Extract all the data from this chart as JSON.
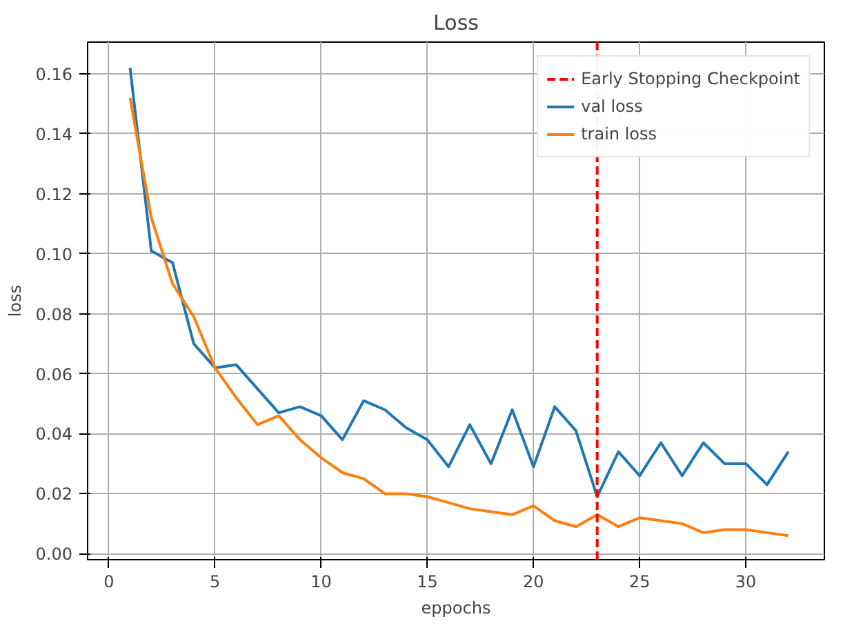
{
  "chart_data": {
    "type": "line",
    "title": "Loss",
    "xlabel": "eppochs",
    "ylabel": "loss",
    "x": [
      1,
      2,
      3,
      4,
      5,
      6,
      7,
      8,
      9,
      10,
      11,
      12,
      13,
      14,
      15,
      16,
      17,
      18,
      19,
      20,
      21,
      22,
      23,
      24,
      25,
      26,
      27,
      28,
      29,
      30,
      31,
      32
    ],
    "series": [
      {
        "name": "val loss",
        "color": "#1f77b4",
        "values": [
          0.162,
          0.101,
          0.097,
          0.07,
          0.062,
          0.063,
          0.055,
          0.047,
          0.049,
          0.046,
          0.038,
          0.051,
          0.048,
          0.042,
          0.038,
          0.029,
          0.043,
          0.03,
          0.048,
          0.029,
          0.049,
          0.041,
          0.019,
          0.034,
          0.026,
          0.037,
          0.026,
          0.037,
          0.03,
          0.03,
          0.023,
          0.034
        ]
      },
      {
        "name": "train loss",
        "color": "#ff7f0e",
        "values": [
          0.152,
          0.112,
          0.09,
          0.079,
          0.062,
          0.052,
          0.043,
          0.046,
          0.038,
          0.032,
          0.027,
          0.025,
          0.02,
          0.02,
          0.019,
          0.017,
          0.015,
          0.014,
          0.013,
          0.016,
          0.011,
          0.009,
          0.013,
          0.009,
          0.012,
          0.011,
          0.01,
          0.007,
          0.008,
          0.008,
          0.007,
          0.006
        ]
      }
    ],
    "ref_lines": [
      {
        "axis": "x",
        "value": 23,
        "label": "Early Stopping Checkpoint",
        "color": "#ff0000",
        "line_style": "dashed"
      }
    ],
    "xlim": [
      -1,
      33.7
    ],
    "ylim": [
      -0.002,
      0.1706
    ],
    "xticks": [
      0,
      5,
      10,
      15,
      20,
      25,
      30
    ],
    "yticks": [
      {
        "value": 0,
        "label": "0.00"
      },
      {
        "value": 0.02,
        "label": "0.02"
      },
      {
        "value": 0.04,
        "label": "0.04"
      },
      {
        "value": 0.06,
        "label": "0.06"
      },
      {
        "value": 0.08,
        "label": "0.08"
      },
      {
        "value": 0.1,
        "label": "0.10"
      },
      {
        "value": 0.12,
        "label": "0.12"
      },
      {
        "value": 0.14,
        "label": "0.14"
      },
      {
        "value": 0.16,
        "label": "0.16"
      }
    ],
    "grid": true,
    "legend": "top right",
    "line_style": "solid"
  }
}
